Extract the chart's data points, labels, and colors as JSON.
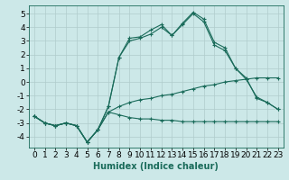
{
  "xlabel": "Humidex (Indice chaleur)",
  "x": [
    0,
    1,
    2,
    3,
    4,
    5,
    6,
    7,
    8,
    9,
    10,
    11,
    12,
    13,
    14,
    15,
    16,
    17,
    18,
    19,
    20,
    21,
    22,
    23
  ],
  "line1": [
    -2.5,
    -3.0,
    -3.2,
    -3.0,
    -3.2,
    -4.4,
    -3.5,
    -2.2,
    -2.4,
    -2.6,
    -2.7,
    -2.7,
    -2.8,
    -2.8,
    -2.9,
    -2.9,
    -2.9,
    -2.9,
    -2.9,
    -2.9,
    -2.9,
    -2.9,
    -2.9,
    -2.9
  ],
  "line2": [
    -2.5,
    -3.0,
    -3.2,
    -3.0,
    -3.2,
    -4.4,
    -3.5,
    -2.2,
    -1.8,
    -1.5,
    -1.3,
    -1.2,
    -1.0,
    -0.9,
    -0.7,
    -0.5,
    -0.3,
    -0.2,
    0.0,
    0.1,
    0.2,
    0.3,
    0.3,
    0.3
  ],
  "line3": [
    -2.5,
    -3.0,
    -3.2,
    -3.0,
    -3.2,
    -4.4,
    -3.5,
    -1.8,
    1.8,
    3.2,
    3.3,
    3.8,
    4.2,
    3.4,
    4.3,
    5.1,
    4.6,
    2.9,
    2.5,
    1.0,
    0.3,
    -1.2,
    -1.5,
    -2.0
  ],
  "line4": [
    -2.5,
    -3.0,
    -3.2,
    -3.0,
    -3.2,
    -4.4,
    -3.5,
    -1.8,
    1.8,
    3.0,
    3.2,
    3.5,
    4.0,
    3.4,
    4.2,
    5.0,
    4.4,
    2.7,
    2.3,
    1.0,
    0.2,
    -1.1,
    -1.5,
    -2.0
  ],
  "bg_color": "#cce8e8",
  "grid_color": "#b0cccc",
  "line_color": "#1a6b5a",
  "ylim": [
    -4.8,
    5.6
  ],
  "yticks": [
    -4,
    -3,
    -2,
    -1,
    0,
    1,
    2,
    3,
    4,
    5
  ],
  "xticks": [
    0,
    1,
    2,
    3,
    4,
    5,
    6,
    7,
    8,
    9,
    10,
    11,
    12,
    13,
    14,
    15,
    16,
    17,
    18,
    19,
    20,
    21,
    22,
    23
  ],
  "xlabel_fontsize": 7,
  "tick_fontsize": 6.5
}
